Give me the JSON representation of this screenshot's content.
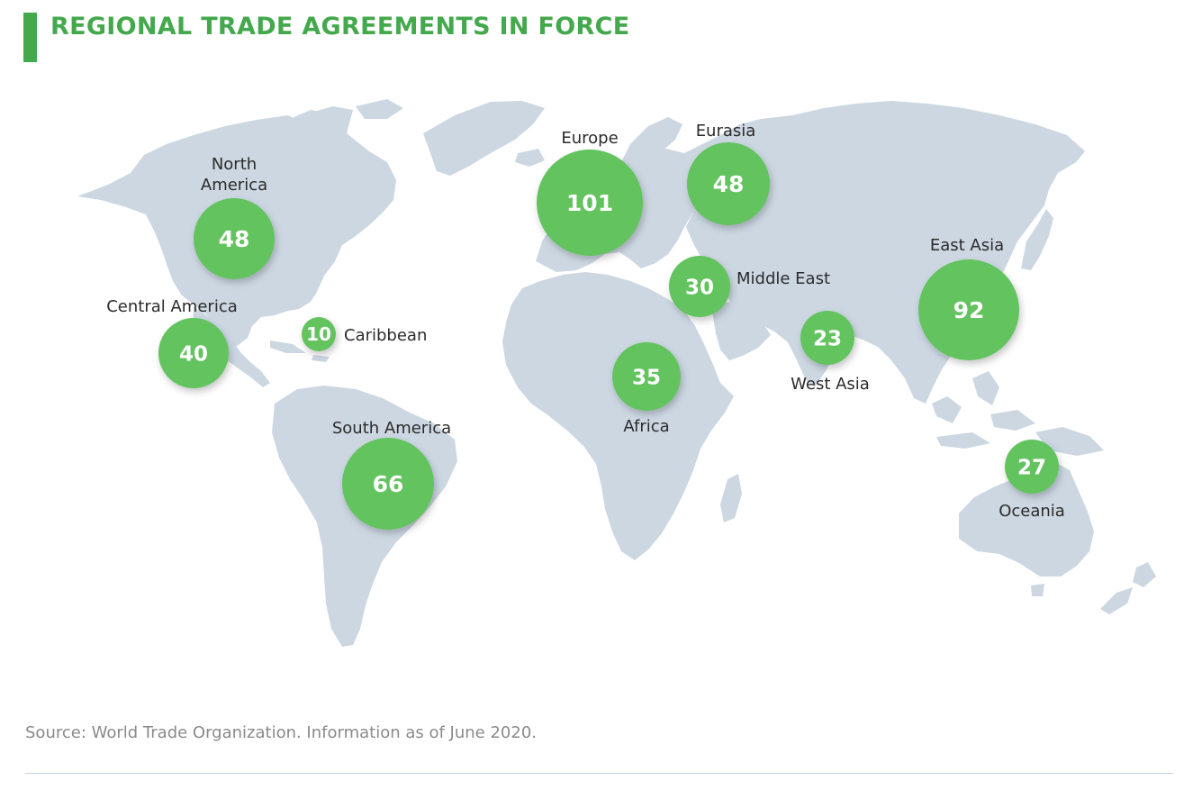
{
  "title": "REGIONAL TRADE AGREEMENTS IN FORCE",
  "source": "Source: World Trade Organization. Information as of June 2020.",
  "colors": {
    "accent": "#44a84d",
    "bubble": "#63c35f",
    "land": "#ccd7e2",
    "text": "#2b2b2b"
  },
  "regions": [
    {
      "id": "north-america",
      "name_lines": [
        "North",
        "America"
      ],
      "value": "48"
    },
    {
      "id": "central-america",
      "name_lines": [
        "Central America"
      ],
      "value": "40"
    },
    {
      "id": "caribbean",
      "name_lines": [
        "Caribbean"
      ],
      "value": "10"
    },
    {
      "id": "south-america",
      "name_lines": [
        "South America"
      ],
      "value": "66"
    },
    {
      "id": "europe",
      "name_lines": [
        "Europe"
      ],
      "value": "101"
    },
    {
      "id": "eurasia",
      "name_lines": [
        "Eurasia"
      ],
      "value": "48"
    },
    {
      "id": "middle-east",
      "name_lines": [
        "Middle East"
      ],
      "value": "30"
    },
    {
      "id": "africa",
      "name_lines": [
        "Africa"
      ],
      "value": "35"
    },
    {
      "id": "west-asia",
      "name_lines": [
        "West Asia"
      ],
      "value": "23"
    },
    {
      "id": "east-asia",
      "name_lines": [
        "East Asia"
      ],
      "value": "92"
    },
    {
      "id": "oceania",
      "name_lines": [
        "Oceania"
      ],
      "value": "27"
    }
  ]
}
